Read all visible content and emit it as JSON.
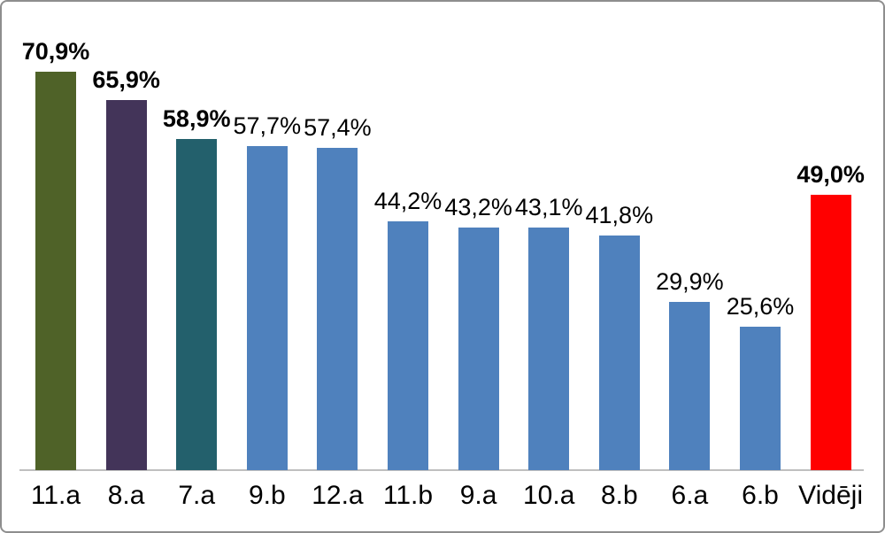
{
  "chart_data": {
    "type": "bar",
    "categories": [
      "11.a",
      "8.a",
      "7.a",
      "9.b",
      "12.a",
      "11.b",
      "9.a",
      "10.a",
      "8.b",
      "6.a",
      "6.b",
      "Vidēji"
    ],
    "values": [
      70.9,
      65.9,
      58.9,
      57.7,
      57.4,
      44.2,
      43.2,
      43.1,
      41.8,
      29.9,
      25.6,
      49.0
    ],
    "value_labels": [
      "70,9%",
      "65,9%",
      "58,9%",
      "57,7%",
      "57,4%",
      "44,2%",
      "43,2%",
      "43,1%",
      "41,8%",
      "29,9%",
      "25,6%",
      "49,0%"
    ],
    "bar_colors": [
      "#4F6228",
      "#433459",
      "#23606C",
      "#4F81BD",
      "#4F81BD",
      "#4F81BD",
      "#4F81BD",
      "#4F81BD",
      "#4F81BD",
      "#4F81BD",
      "#4F81BD",
      "#FF0000"
    ],
    "bold_labels": [
      true,
      true,
      true,
      false,
      false,
      false,
      false,
      false,
      false,
      false,
      false,
      true
    ],
    "title": "",
    "xlabel": "",
    "ylabel": "",
    "ylim": [
      0,
      75
    ],
    "grid": false,
    "legend": null,
    "axis_line_color": "#BFBFBF",
    "background": "#FFFFFF",
    "border_color": "#8E8E8E"
  }
}
